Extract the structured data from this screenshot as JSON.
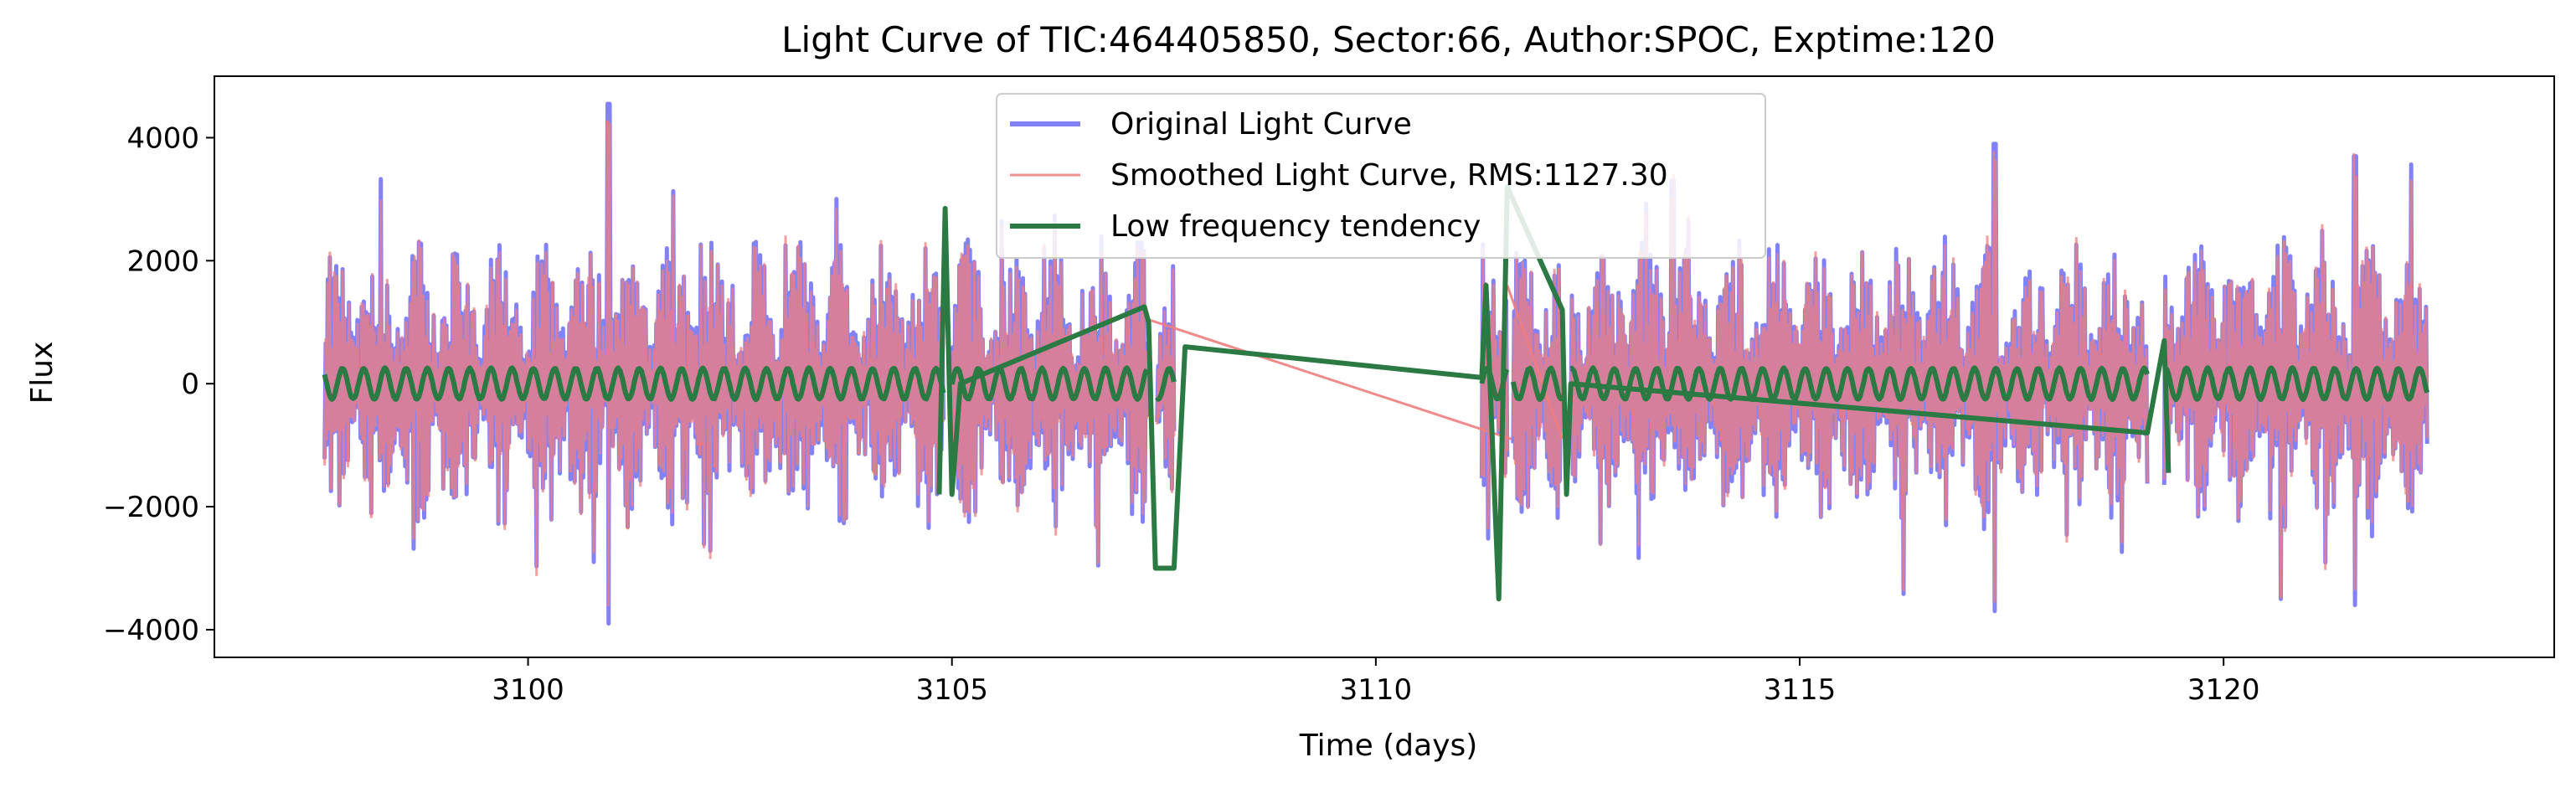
{
  "chart_data": {
    "type": "line",
    "title": "Light Curve of TIC:464405850, Sector:66, Author:SPOC, Exptime:120",
    "xlabel": "Time (days)",
    "ylabel": "Flux",
    "xlim": [
      3096.3,
      3123.9
    ],
    "ylim": [
      -4450,
      5000
    ],
    "xticks": [
      3100,
      3105,
      3110,
      3115,
      3120
    ],
    "yticks": [
      -4000,
      -2000,
      0,
      2000,
      4000
    ],
    "ytick_labels": [
      "−4000",
      "−2000",
      "0",
      "2000",
      "4000"
    ],
    "grid": false,
    "legend_position": "top-center",
    "data_segments": [
      [
        3097.6,
        3104.9
      ],
      [
        3105.0,
        3107.3
      ],
      [
        3107.42,
        3107.62
      ],
      [
        3111.25,
        3111.55
      ],
      [
        3111.62,
        3112.2
      ],
      [
        3112.3,
        3119.1
      ],
      [
        3119.3,
        3122.4
      ]
    ],
    "smoothed_gap_bridges": [
      [
        [
          3107.3,
          1050
        ],
        [
          3111.6,
          -900
        ]
      ],
      [
        [
          3111.55,
          1600
        ],
        [
          3112.2,
          -900
        ]
      ]
    ],
    "oscillation_period_days": 0.25,
    "notable_extremes": [
      {
        "x": 3100.95,
        "y": 4550
      },
      {
        "x": 3100.95,
        "y": -3900
      },
      {
        "x": 3117.3,
        "y": 3900
      },
      {
        "x": 3117.3,
        "y": -3700
      },
      {
        "x": 3121.55,
        "y": 3700
      },
      {
        "x": 3121.55,
        "y": -3600
      },
      {
        "x": 3113.5,
        "y": 3300
      }
    ],
    "series": [
      {
        "name": "Original Light Curve",
        "color": "#7b7bf5",
        "amplitude_typical": 2000,
        "amplitude_peak": 4500
      },
      {
        "name": "Smoothed Light Curve, RMS:1127.30",
        "color": "#f07d7d",
        "rms": 1127.3
      },
      {
        "name": "Low frequency tendency",
        "color": "#2b7a43",
        "amplitude_typical": 250,
        "points": [
          [
            3104.85,
            -1800
          ],
          [
            3104.92,
            2850
          ],
          [
            3105.0,
            -1800
          ],
          [
            3105.1,
            0
          ],
          [
            3107.27,
            1250
          ],
          [
            3107.32,
            1000
          ],
          [
            3107.4,
            -3000
          ],
          [
            3107.62,
            -3000
          ],
          [
            3107.75,
            600
          ],
          [
            3111.25,
            100
          ],
          [
            3111.3,
            1600
          ],
          [
            3111.45,
            -3500
          ],
          [
            3111.55,
            3200
          ],
          [
            3112.2,
            1200
          ],
          [
            3112.25,
            -1800
          ],
          [
            3112.3,
            0
          ],
          [
            3119.1,
            -800
          ],
          [
            3119.3,
            700
          ],
          [
            3119.35,
            -1450
          ]
        ]
      }
    ]
  }
}
